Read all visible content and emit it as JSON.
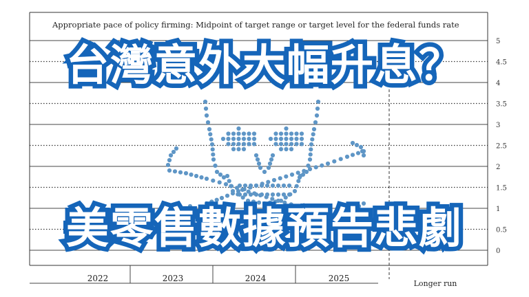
{
  "headline_top": "台灣意外大幅升息？",
  "headline_bottom": "美零售數據預告悲劇",
  "colors": {
    "headline_fill": "#ffffff",
    "headline_outline": "#1565b9",
    "dots": "#5f96c6"
  },
  "chart_data": {
    "type": "scatter",
    "title": "Appropriate pace of policy firming: Midpoint of target range or target level for the federal funds rate",
    "categories": [
      "2022",
      "2023",
      "2024",
      "2025",
      "Longer run"
    ],
    "y_ticks": [
      "0",
      "0.5",
      "1",
      "1.5",
      "2",
      "2.5",
      "3",
      "3.5",
      "4",
      "4.5",
      "5"
    ],
    "ylim": [
      0,
      5
    ],
    "grid": true,
    "overlay": "skull-and-crossbones dot pattern"
  }
}
